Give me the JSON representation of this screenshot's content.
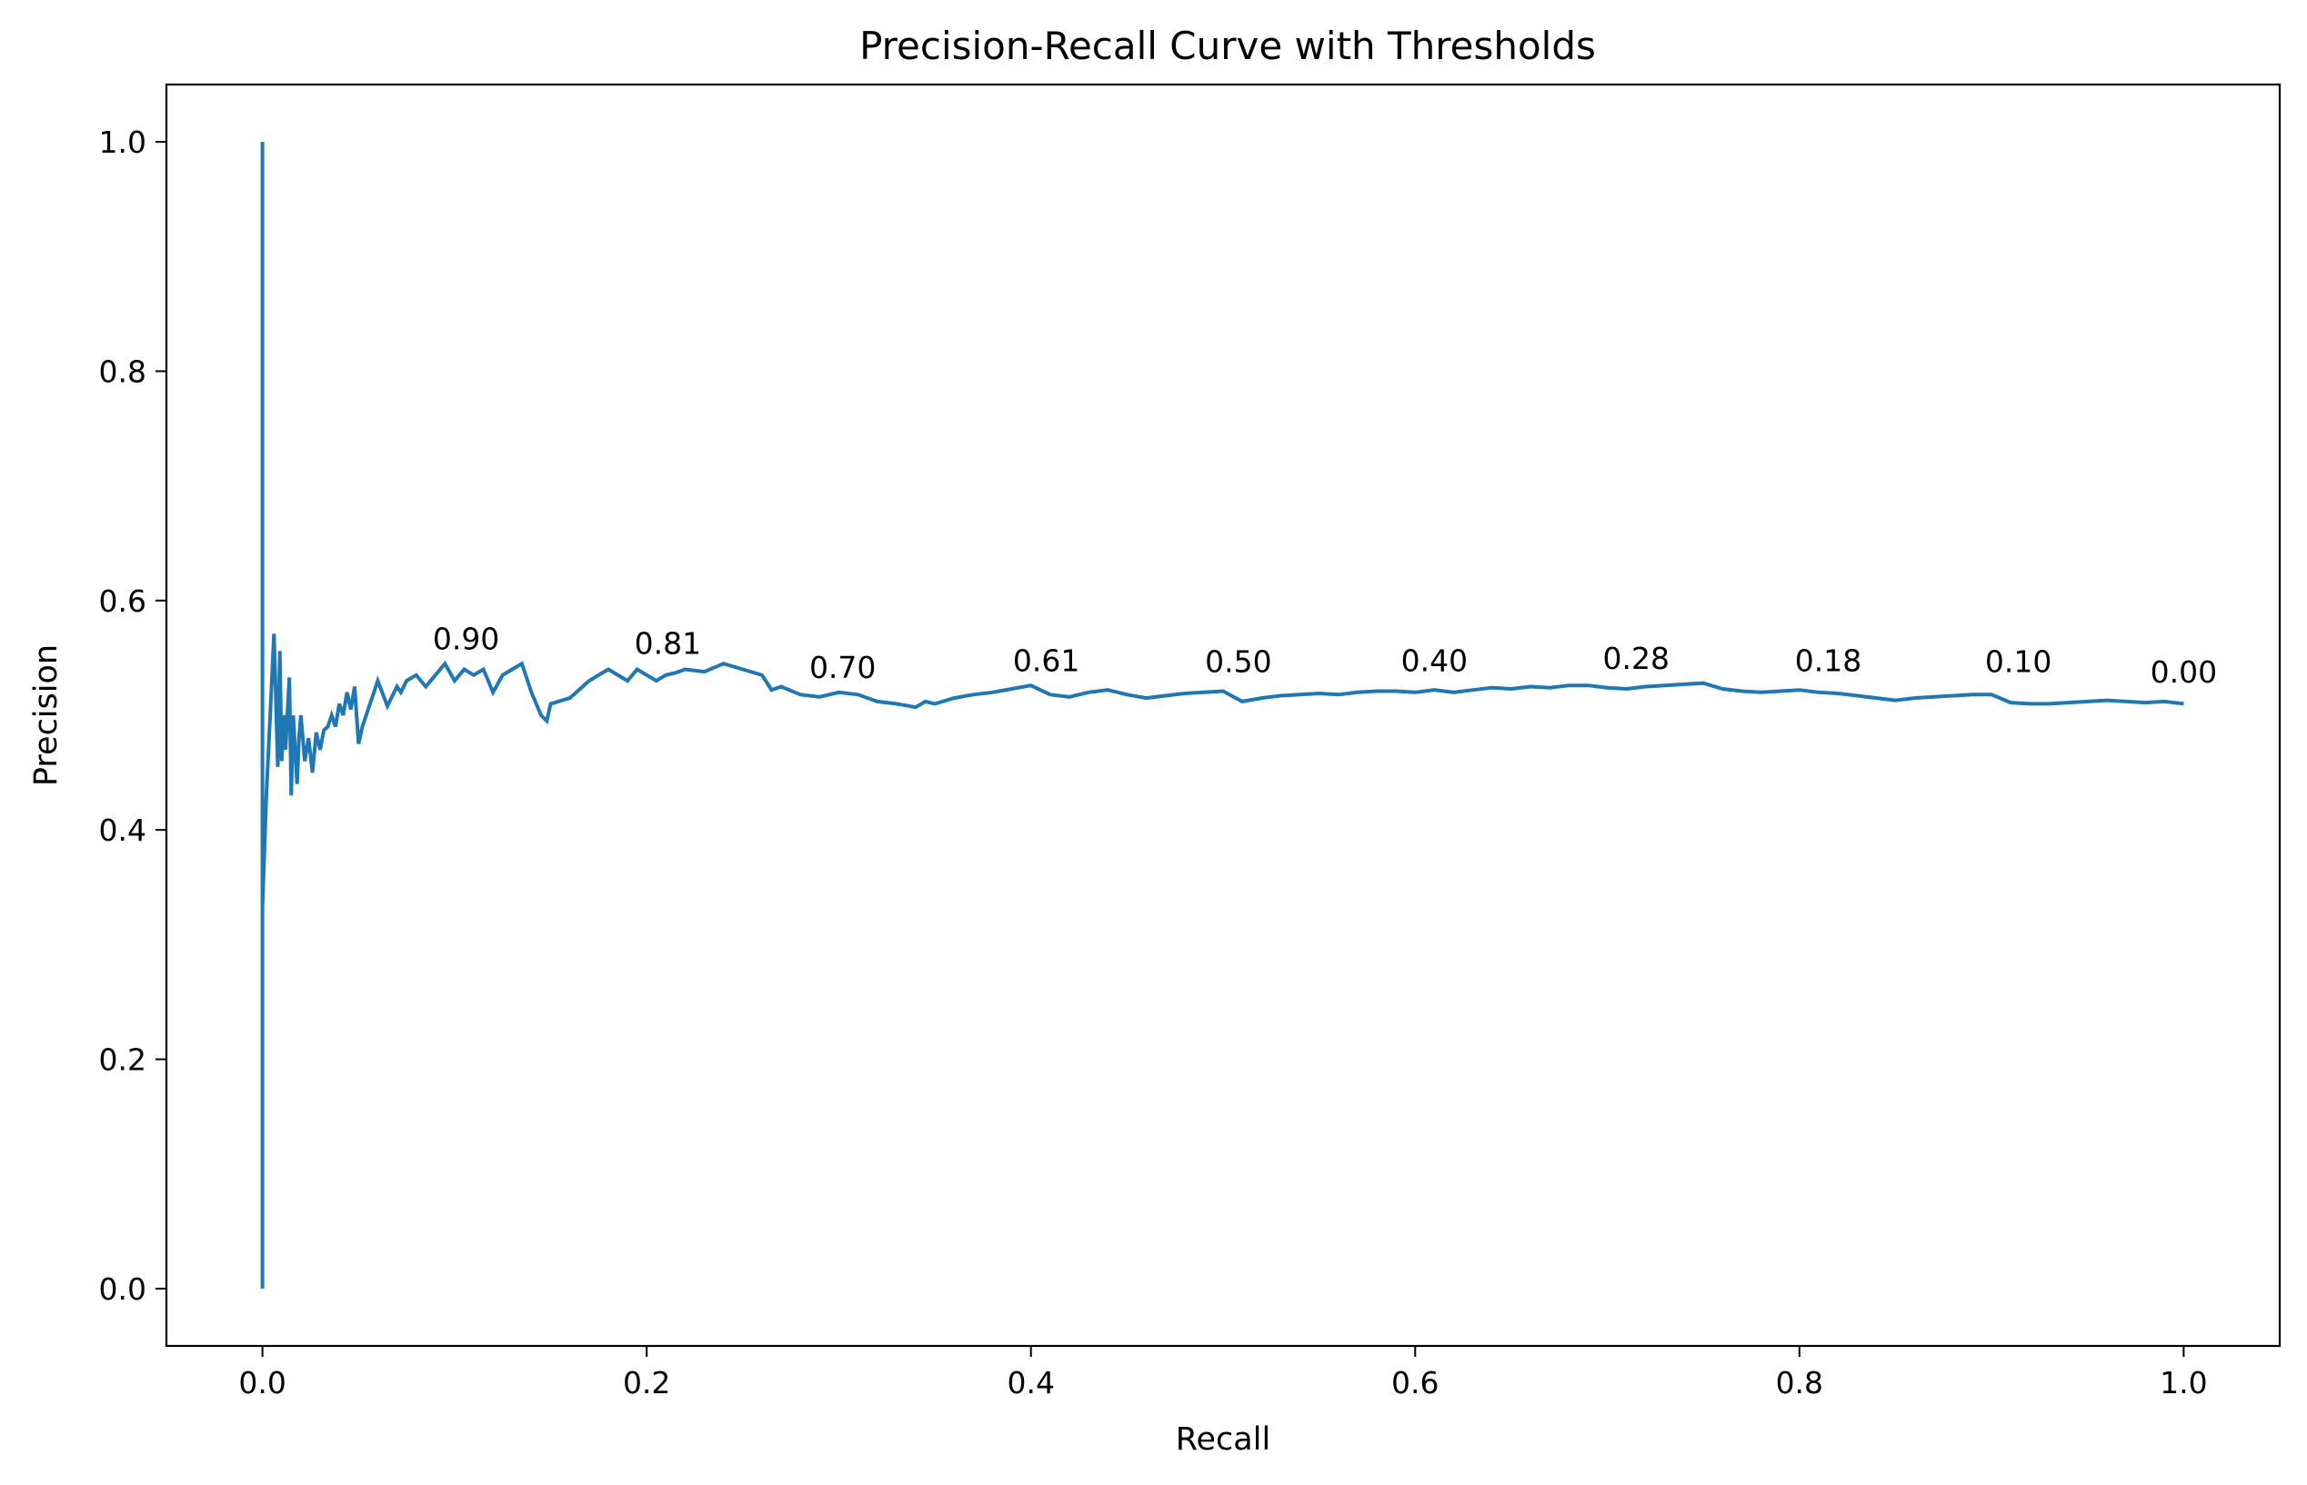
{
  "chart_data": {
    "type": "line",
    "title": "Precision-Recall Curve with Thresholds",
    "xlabel": "Recall",
    "ylabel": "Precision",
    "xlim": [
      -0.05,
      1.05
    ],
    "ylim": [
      -0.05,
      1.05
    ],
    "xticks": [
      0.0,
      0.2,
      0.4,
      0.6,
      0.8,
      1.0
    ],
    "xtick_labels": [
      "0.0",
      "0.2",
      "0.4",
      "0.6",
      "0.8",
      "1.0"
    ],
    "yticks": [
      0.0,
      0.2,
      0.4,
      0.6,
      0.8,
      1.0
    ],
    "ytick_labels": [
      "0.0",
      "0.2",
      "0.4",
      "0.6",
      "0.8",
      "1.0"
    ],
    "grid": false,
    "legend": "none",
    "line_color": "#1f77b4",
    "series": [
      {
        "x": [
          0.0,
          0.0,
          0.0,
          0.002,
          0.004,
          0.006,
          0.008,
          0.009,
          0.01,
          0.011,
          0.012,
          0.014,
          0.015,
          0.016,
          0.017,
          0.018,
          0.019,
          0.02,
          0.022,
          0.024,
          0.026,
          0.028,
          0.03,
          0.032,
          0.034,
          0.036,
          0.038,
          0.04,
          0.042,
          0.044,
          0.046,
          0.048,
          0.05,
          0.052,
          0.054,
          0.056,
          0.058,
          0.06,
          0.065,
          0.07,
          0.072,
          0.075,
          0.08,
          0.085,
          0.09,
          0.095,
          0.1,
          0.105,
          0.11,
          0.115,
          0.12,
          0.125,
          0.13,
          0.135,
          0.14,
          0.145,
          0.148,
          0.15,
          0.16,
          0.17,
          0.18,
          0.19,
          0.195,
          0.2,
          0.205,
          0.21,
          0.215,
          0.22,
          0.23,
          0.24,
          0.25,
          0.26,
          0.265,
          0.27,
          0.28,
          0.29,
          0.3,
          0.31,
          0.32,
          0.33,
          0.34,
          0.345,
          0.35,
          0.36,
          0.37,
          0.38,
          0.39,
          0.4,
          0.41,
          0.42,
          0.43,
          0.44,
          0.45,
          0.46,
          0.47,
          0.48,
          0.49,
          0.5,
          0.51,
          0.52,
          0.53,
          0.54,
          0.55,
          0.56,
          0.57,
          0.58,
          0.59,
          0.6,
          0.61,
          0.62,
          0.63,
          0.64,
          0.65,
          0.66,
          0.67,
          0.68,
          0.69,
          0.7,
          0.71,
          0.72,
          0.73,
          0.74,
          0.75,
          0.76,
          0.77,
          0.78,
          0.79,
          0.8,
          0.81,
          0.82,
          0.83,
          0.84,
          0.85,
          0.86,
          0.87,
          0.88,
          0.89,
          0.9,
          0.91,
          0.92,
          0.93,
          0.94,
          0.95,
          0.96,
          0.97,
          0.98,
          0.99,
          1.0
        ],
        "y": [
          1.0,
          0.0,
          0.333,
          0.43,
          0.5,
          0.571,
          0.455,
          0.556,
          0.46,
          0.5,
          0.47,
          0.533,
          0.43,
          0.5,
          0.47,
          0.44,
          0.48,
          0.5,
          0.46,
          0.48,
          0.45,
          0.485,
          0.47,
          0.487,
          0.49,
          0.5,
          0.49,
          0.51,
          0.5,
          0.52,
          0.505,
          0.525,
          0.475,
          0.49,
          0.5,
          0.51,
          0.52,
          0.53,
          0.508,
          0.525,
          0.52,
          0.53,
          0.535,
          0.525,
          0.535,
          0.545,
          0.53,
          0.54,
          0.535,
          0.54,
          0.52,
          0.535,
          0.54,
          0.545,
          0.52,
          0.5,
          0.495,
          0.51,
          0.515,
          0.53,
          0.54,
          0.53,
          0.54,
          0.535,
          0.53,
          0.535,
          0.537,
          0.54,
          0.538,
          0.545,
          0.54,
          0.535,
          0.522,
          0.525,
          0.518,
          0.516,
          0.52,
          0.518,
          0.512,
          0.51,
          0.507,
          0.512,
          0.51,
          0.515,
          0.518,
          0.52,
          0.523,
          0.526,
          0.518,
          0.516,
          0.52,
          0.522,
          0.518,
          0.515,
          0.517,
          0.519,
          0.52,
          0.521,
          0.512,
          0.515,
          0.517,
          0.518,
          0.519,
          0.518,
          0.52,
          0.521,
          0.521,
          0.52,
          0.522,
          0.52,
          0.522,
          0.524,
          0.523,
          0.525,
          0.524,
          0.526,
          0.526,
          0.524,
          0.523,
          0.525,
          0.526,
          0.527,
          0.528,
          0.523,
          0.521,
          0.52,
          0.521,
          0.522,
          0.52,
          0.519,
          0.517,
          0.515,
          0.513,
          0.515,
          0.516,
          0.517,
          0.518,
          0.518,
          0.511,
          0.51,
          0.51,
          0.511,
          0.512,
          0.513,
          0.512,
          0.511,
          0.512,
          0.51
        ]
      }
    ],
    "annotations": [
      {
        "text": "0.90",
        "x": 0.106,
        "y": 0.567
      },
      {
        "text": "0.81",
        "x": 0.211,
        "y": 0.563
      },
      {
        "text": "0.70",
        "x": 0.302,
        "y": 0.542
      },
      {
        "text": "0.61",
        "x": 0.408,
        "y": 0.548
      },
      {
        "text": "0.50",
        "x": 0.508,
        "y": 0.547
      },
      {
        "text": "0.40",
        "x": 0.61,
        "y": 0.548
      },
      {
        "text": "0.28",
        "x": 0.715,
        "y": 0.55
      },
      {
        "text": "0.18",
        "x": 0.815,
        "y": 0.548
      },
      {
        "text": "0.10",
        "x": 0.914,
        "y": 0.547
      },
      {
        "text": "0.00",
        "x": 1.0,
        "y": 0.538
      }
    ]
  }
}
